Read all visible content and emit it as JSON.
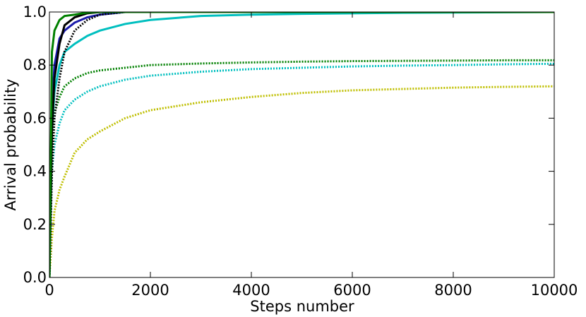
{
  "chart_data": {
    "type": "line",
    "xlabel": "Steps number",
    "ylabel": "Arrival probability",
    "x": [
      0,
      50,
      100,
      200,
      300,
      500,
      750,
      1000,
      1500,
      2000,
      3000,
      4000,
      5000,
      6000,
      7000,
      8000,
      9000,
      10000
    ],
    "xlim": [
      0,
      10000
    ],
    "xticks": [
      0,
      2000,
      4000,
      6000,
      8000,
      10000
    ],
    "ylim": [
      0,
      1
    ],
    "yticks": [
      {
        "value": 0,
        "label": "0.0"
      },
      0.2,
      0.4,
      0.6,
      0.8,
      {
        "value": 1,
        "label": "1.0"
      }
    ],
    "series": [
      {
        "color": "#bfbf00",
        "dash": "dotted",
        "values": [
          0,
          0.15,
          0.25,
          0.33,
          0.38,
          0.47,
          0.52,
          0.55,
          0.6,
          0.63,
          0.66,
          0.68,
          0.695,
          0.705,
          0.71,
          0.715,
          0.718,
          0.72
        ]
      },
      {
        "color": "#00bfbf",
        "dash": "dotted",
        "values": [
          0,
          0.4,
          0.5,
          0.58,
          0.63,
          0.67,
          0.7,
          0.72,
          0.745,
          0.76,
          0.775,
          0.785,
          0.79,
          0.795,
          0.798,
          0.8,
          0.803,
          0.805
        ]
      },
      {
        "color": "#008000",
        "dash": "dotted",
        "values": [
          0,
          0.5,
          0.62,
          0.68,
          0.72,
          0.75,
          0.77,
          0.78,
          0.79,
          0.8,
          0.806,
          0.81,
          0.813,
          0.815,
          0.816,
          0.817,
          0.818,
          0.818
        ]
      },
      {
        "color": "#00bfbf",
        "dash": "solid",
        "values": [
          0,
          0.55,
          0.7,
          0.8,
          0.85,
          0.88,
          0.91,
          0.93,
          0.955,
          0.97,
          0.985,
          0.99,
          0.993,
          0.995,
          0.997,
          0.998,
          0.999,
          1
        ]
      },
      {
        "color": "#1a1aaa",
        "dash": "solid",
        "values": [
          0,
          0.65,
          0.8,
          0.9,
          0.93,
          0.96,
          0.98,
          0.99,
          1,
          1,
          1,
          1,
          1,
          1,
          1,
          1,
          1,
          1
        ]
      },
      {
        "color": "#000000",
        "dash": "dotted",
        "values": [
          0,
          0.4,
          0.6,
          0.75,
          0.85,
          0.93,
          0.97,
          0.99,
          1,
          1,
          1,
          1,
          1,
          1,
          1,
          1,
          1,
          1
        ]
      },
      {
        "color": "#000000",
        "dash": "solid",
        "values": [
          0,
          0.55,
          0.75,
          0.88,
          0.95,
          0.98,
          0.995,
          1,
          1,
          1,
          1,
          1,
          1,
          1,
          1,
          1,
          1,
          1
        ]
      },
      {
        "color": "#008000",
        "dash": "solid",
        "values": [
          0,
          0.85,
          0.93,
          0.97,
          0.985,
          0.99,
          0.998,
          1,
          1,
          1,
          1,
          1,
          1,
          1,
          1,
          1,
          1,
          1
        ]
      }
    ]
  }
}
